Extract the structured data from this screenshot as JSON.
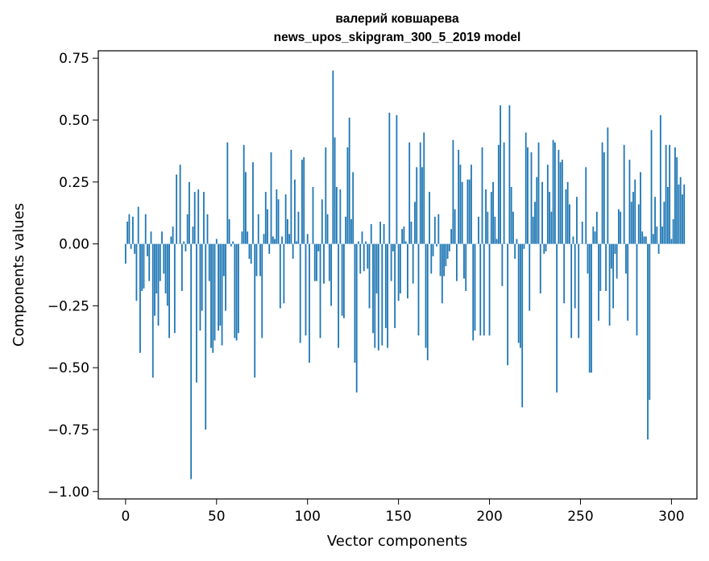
{
  "chart_data": {
    "type": "bar",
    "title_line1": "валерий ковшарева",
    "title_line2": "news_upos_skipgram_300_5_2019 model",
    "xlabel": "Vector components",
    "ylabel": "Components values",
    "xlim": [
      -15,
      314
    ],
    "ylim": [
      -1.03,
      0.78
    ],
    "xticks": [
      0,
      50,
      100,
      150,
      200,
      250,
      300
    ],
    "xtick_labels": [
      "0",
      "50",
      "100",
      "150",
      "200",
      "250",
      "300"
    ],
    "yticks": [
      -1.0,
      -0.75,
      -0.5,
      -0.25,
      0.0,
      0.25,
      0.5,
      0.75
    ],
    "ytick_labels": [
      "−1.00",
      "−0.75",
      "−0.50",
      "−0.25",
      "0.00",
      "0.25",
      "0.50",
      "0.75"
    ],
    "bar_color": "#1f77b4",
    "grid": false,
    "values": [
      -0.08,
      0.09,
      0.12,
      -0.02,
      0.11,
      -0.04,
      -0.23,
      0.15,
      -0.44,
      -0.19,
      -0.18,
      0.12,
      -0.05,
      -0.15,
      0.05,
      -0.54,
      -0.29,
      -0.2,
      -0.33,
      -0.15,
      0.05,
      -0.12,
      -0.2,
      -0.25,
      -0.38,
      0.03,
      0.07,
      -0.36,
      0.28,
      0.0,
      0.32,
      -0.19,
      0.01,
      -0.03,
      0.12,
      0.25,
      -0.95,
      0.07,
      0.21,
      -0.56,
      0.22,
      -0.35,
      -0.27,
      0.21,
      -0.75,
      0.12,
      -0.15,
      -0.42,
      -0.44,
      -0.39,
      0.02,
      -0.35,
      -0.33,
      -0.41,
      -0.13,
      -0.27,
      0.41,
      0.1,
      -0.01,
      0.01,
      -0.38,
      -0.39,
      -0.36,
      0.0,
      0.05,
      0.4,
      0.29,
      0.05,
      -0.06,
      -0.08,
      0.33,
      -0.54,
      -0.13,
      0.12,
      -0.13,
      -0.38,
      0.04,
      0.21,
      0.14,
      -0.04,
      0.37,
      0.03,
      0.02,
      0.22,
      0.18,
      -0.26,
      0.03,
      -0.24,
      0.2,
      0.1,
      0.04,
      0.38,
      -0.06,
      0.26,
      0.01,
      0.13,
      -0.4,
      0.34,
      0.35,
      -0.37,
      0.04,
      -0.48,
      0.0,
      0.23,
      -0.15,
      -0.15,
      -0.03,
      -0.38,
      0.18,
      -0.16,
      0.39,
      0.12,
      -0.15,
      -0.25,
      0.7,
      0.43,
      0.23,
      -0.42,
      0.22,
      -0.29,
      -0.3,
      0.11,
      0.39,
      0.51,
      0.1,
      0.29,
      -0.48,
      -0.6,
      0.01,
      -0.12,
      0.05,
      -0.11,
      0.01,
      -0.1,
      -0.26,
      0.08,
      -0.36,
      -0.42,
      -0.2,
      -0.43,
      0.09,
      -0.41,
      0.08,
      -0.34,
      -0.42,
      0.53,
      -0.15,
      -0.03,
      -0.34,
      0.52,
      -0.23,
      -0.2,
      0.06,
      0.07,
      0.01,
      -0.22,
      0.41,
      0.09,
      -0.16,
      0.17,
      0.31,
      -0.37,
      0.41,
      0.31,
      0.45,
      -0.42,
      -0.47,
      0.21,
      -0.12,
      -0.05,
      0.11,
      -0.01,
      0.12,
      -0.13,
      -0.24,
      -0.13,
      -0.09,
      -0.06,
      -0.03,
      0.06,
      0.42,
      0.14,
      -0.15,
      0.38,
      0.32,
      0.25,
      -0.14,
      -0.19,
      0.26,
      0.26,
      0.32,
      -0.39,
      -0.35,
      0.0,
      0.11,
      -0.37,
      0.39,
      -0.37,
      0.22,
      0.13,
      -0.37,
      0.21,
      0.25,
      0.11,
      0.02,
      0.4,
      0.56,
      -0.17,
      0.41,
      0.0,
      -0.49,
      0.56,
      0.23,
      0.13,
      -0.06,
      0.02,
      -0.4,
      -0.42,
      -0.66,
      -0.02,
      0.45,
      0.39,
      -0.27,
      0.37,
      0.11,
      0.17,
      0.27,
      0.41,
      -0.2,
      0.25,
      -0.04,
      -0.03,
      0.32,
      0.21,
      0.13,
      0.42,
      0.41,
      -0.6,
      0.38,
      0.33,
      0.34,
      -0.24,
      0.22,
      0.25,
      0.16,
      -0.38,
      0.03,
      -0.26,
      0.19,
      -0.38,
      0.0,
      0.09,
      0.0,
      0.31,
      -0.12,
      -0.52,
      -0.52,
      0.07,
      0.05,
      0.13,
      -0.31,
      -0.19,
      0.41,
      0.37,
      -0.19,
      0.47,
      -0.33,
      -0.1,
      -0.26,
      -0.04,
      -0.14,
      0.14,
      0.13,
      0.0,
      0.4,
      -0.12,
      -0.31,
      0.34,
      0.17,
      0.21,
      0.26,
      -0.37,
      0.16,
      0.29,
      0.05,
      0.03,
      0.03,
      -0.79,
      -0.63,
      0.46,
      0.04,
      0.19,
      0.07,
      -0.04,
      0.52,
      0.07,
      0.17,
      0.4,
      0.23,
      0.4,
      0.02,
      0.1,
      0.39,
      0.35,
      0.24,
      0.27,
      0.2,
      0.24
    ]
  }
}
